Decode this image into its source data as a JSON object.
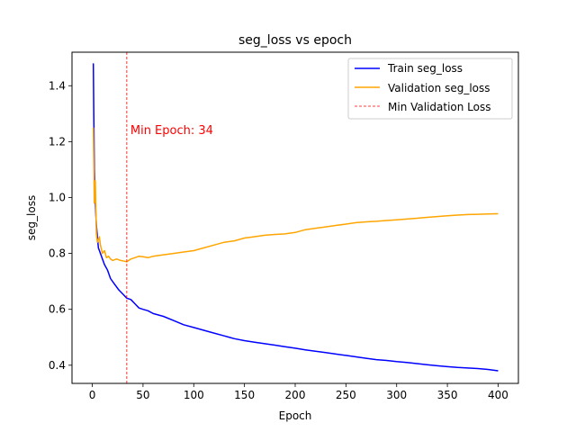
{
  "chart_data": {
    "type": "line",
    "title": "seg_loss vs epoch",
    "xlabel": "Epoch",
    "ylabel": "seg_loss",
    "xlim": [
      -20,
      420
    ],
    "ylim": [
      0.335,
      1.52
    ],
    "xticks": [
      0,
      50,
      100,
      150,
      200,
      250,
      300,
      350,
      400
    ],
    "yticks": [
      0.4,
      0.6,
      0.8,
      1.0,
      1.2,
      1.4
    ],
    "grid": false,
    "legend_position": "top-right",
    "series": [
      {
        "name": "Train seg_loss",
        "color": "#0000ff",
        "points": [
          [
            1,
            1.48
          ],
          [
            2,
            1.1
          ],
          [
            3,
            0.98
          ],
          [
            4,
            0.9
          ],
          [
            5,
            0.86
          ],
          [
            6,
            0.82
          ],
          [
            8,
            0.8
          ],
          [
            10,
            0.78
          ],
          [
            12,
            0.76
          ],
          [
            15,
            0.74
          ],
          [
            18,
            0.71
          ],
          [
            22,
            0.69
          ],
          [
            26,
            0.67
          ],
          [
            30,
            0.655
          ],
          [
            34,
            0.64
          ],
          [
            38,
            0.635
          ],
          [
            42,
            0.62
          ],
          [
            46,
            0.605
          ],
          [
            50,
            0.6
          ],
          [
            55,
            0.595
          ],
          [
            60,
            0.585
          ],
          [
            70,
            0.575
          ],
          [
            80,
            0.56
          ],
          [
            90,
            0.545
          ],
          [
            100,
            0.535
          ],
          [
            110,
            0.525
          ],
          [
            120,
            0.515
          ],
          [
            130,
            0.505
          ],
          [
            140,
            0.495
          ],
          [
            150,
            0.488
          ],
          [
            160,
            0.482
          ],
          [
            170,
            0.477
          ],
          [
            180,
            0.472
          ],
          [
            190,
            0.466
          ],
          [
            200,
            0.461
          ],
          [
            210,
            0.455
          ],
          [
            220,
            0.45
          ],
          [
            230,
            0.445
          ],
          [
            240,
            0.44
          ],
          [
            250,
            0.435
          ],
          [
            260,
            0.43
          ],
          [
            270,
            0.425
          ],
          [
            280,
            0.42
          ],
          [
            290,
            0.417
          ],
          [
            300,
            0.413
          ],
          [
            310,
            0.41
          ],
          [
            320,
            0.406
          ],
          [
            330,
            0.402
          ],
          [
            340,
            0.398
          ],
          [
            350,
            0.395
          ],
          [
            360,
            0.392
          ],
          [
            370,
            0.39
          ],
          [
            380,
            0.388
          ],
          [
            390,
            0.385
          ],
          [
            400,
            0.38
          ]
        ]
      },
      {
        "name": "Validation seg_loss",
        "color": "#ffa500",
        "points": [
          [
            1,
            1.25
          ],
          [
            2,
            0.98
          ],
          [
            3,
            1.06
          ],
          [
            4,
            0.87
          ],
          [
            5,
            0.84
          ],
          [
            6,
            0.85
          ],
          [
            7,
            0.86
          ],
          [
            8,
            0.83
          ],
          [
            10,
            0.8
          ],
          [
            12,
            0.81
          ],
          [
            14,
            0.785
          ],
          [
            16,
            0.79
          ],
          [
            18,
            0.78
          ],
          [
            20,
            0.775
          ],
          [
            24,
            0.78
          ],
          [
            28,
            0.775
          ],
          [
            32,
            0.772
          ],
          [
            34,
            0.77
          ],
          [
            38,
            0.78
          ],
          [
            42,
            0.785
          ],
          [
            46,
            0.79
          ],
          [
            50,
            0.788
          ],
          [
            55,
            0.785
          ],
          [
            60,
            0.79
          ],
          [
            70,
            0.795
          ],
          [
            80,
            0.8
          ],
          [
            90,
            0.805
          ],
          [
            100,
            0.81
          ],
          [
            110,
            0.82
          ],
          [
            120,
            0.83
          ],
          [
            130,
            0.84
          ],
          [
            140,
            0.845
          ],
          [
            150,
            0.855
          ],
          [
            160,
            0.86
          ],
          [
            170,
            0.865
          ],
          [
            180,
            0.868
          ],
          [
            190,
            0.87
          ],
          [
            200,
            0.875
          ],
          [
            210,
            0.885
          ],
          [
            220,
            0.89
          ],
          [
            230,
            0.895
          ],
          [
            240,
            0.9
          ],
          [
            250,
            0.905
          ],
          [
            260,
            0.91
          ],
          [
            270,
            0.913
          ],
          [
            280,
            0.915
          ],
          [
            290,
            0.918
          ],
          [
            300,
            0.92
          ],
          [
            310,
            0.923
          ],
          [
            320,
            0.926
          ],
          [
            330,
            0.929
          ],
          [
            340,
            0.932
          ],
          [
            350,
            0.935
          ],
          [
            360,
            0.937
          ],
          [
            370,
            0.939
          ],
          [
            380,
            0.94
          ],
          [
            390,
            0.941
          ],
          [
            400,
            0.942
          ]
        ]
      }
    ],
    "vline": {
      "name": "Min Validation Loss",
      "x": 34,
      "color": "#ff0000",
      "style": "dashed"
    },
    "annotation": {
      "text": "Min Epoch: 34",
      "x": 34,
      "y": 1.24,
      "color": "#ff0000"
    }
  }
}
